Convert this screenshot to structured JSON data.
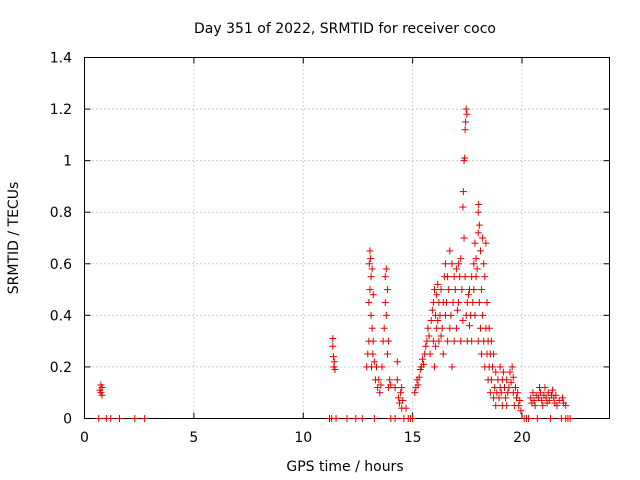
{
  "chart_data": {
    "type": "scatter",
    "title": "Day 351 of 2022, SRMTID for receiver coco",
    "xlabel": "GPS time / hours",
    "ylabel": "SRMTID / TECUs",
    "xlim": [
      0,
      24
    ],
    "ylim": [
      0,
      1.4
    ],
    "xticks": [
      0,
      5,
      10,
      15,
      20
    ],
    "xtick_labels": [
      "0",
      "5",
      "10",
      "15",
      "20"
    ],
    "yticks": [
      0,
      0.2,
      0.4,
      0.6,
      0.8,
      1,
      1.2,
      1.4
    ],
    "ytick_labels": [
      "0",
      "0.2",
      "0.4",
      "0.6",
      "0.8",
      "1",
      "1.2",
      "1.4"
    ],
    "grid": true,
    "marker": "+",
    "color": "#e00000",
    "series": [
      {
        "name": "SRMTID",
        "points": [
          [
            0.65,
            0
          ],
          [
            0.7,
            0.11
          ],
          [
            0.75,
            0.13
          ],
          [
            0.75,
            0.1
          ],
          [
            0.8,
            0.12
          ],
          [
            0.8,
            0.09
          ],
          [
            1.0,
            0
          ],
          [
            1.2,
            0
          ],
          [
            1.6,
            0
          ],
          [
            2.3,
            0
          ],
          [
            2.75,
            0
          ],
          [
            11.2,
            0
          ],
          [
            11.3,
            0
          ],
          [
            11.35,
            0.31
          ],
          [
            11.35,
            0.28
          ],
          [
            11.38,
            0.24
          ],
          [
            11.4,
            0.2
          ],
          [
            11.42,
            0.22
          ],
          [
            11.45,
            0.19
          ],
          [
            11.5,
            0
          ],
          [
            12.0,
            0
          ],
          [
            12.4,
            0
          ],
          [
            12.7,
            0
          ],
          [
            12.9,
            0.2
          ],
          [
            12.95,
            0.25
          ],
          [
            13.0,
            0.3
          ],
          [
            13.0,
            0.45
          ],
          [
            13.02,
            0.6
          ],
          [
            13.05,
            0.65
          ],
          [
            13.05,
            0.5
          ],
          [
            13.08,
            0.62
          ],
          [
            13.1,
            0.55
          ],
          [
            13.1,
            0.4
          ],
          [
            13.12,
            0.2
          ],
          [
            13.15,
            0.35
          ],
          [
            13.15,
            0.58
          ],
          [
            13.18,
            0.25
          ],
          [
            13.2,
            0.3
          ],
          [
            13.2,
            0.48
          ],
          [
            13.25,
            0.22
          ],
          [
            13.25,
            0
          ],
          [
            13.3,
            0.15
          ],
          [
            13.35,
            0.2
          ],
          [
            13.4,
            0.12
          ],
          [
            13.45,
            0.15
          ],
          [
            13.5,
            0.1
          ],
          [
            13.55,
            0.13
          ],
          [
            13.6,
            0.2
          ],
          [
            13.65,
            0.3
          ],
          [
            13.7,
            0.35
          ],
          [
            13.75,
            0.45
          ],
          [
            13.75,
            0.55
          ],
          [
            13.8,
            0.58
          ],
          [
            13.8,
            0.4
          ],
          [
            13.85,
            0.5
          ],
          [
            13.85,
            0.25
          ],
          [
            13.9,
            0.3
          ],
          [
            13.9,
            0.12
          ],
          [
            13.95,
            0.15
          ],
          [
            14.0,
            0.13
          ],
          [
            14.0,
            0
          ],
          [
            14.2,
            0.12
          ],
          [
            14.2,
            0
          ],
          [
            14.3,
            0.22
          ],
          [
            14.3,
            0.15
          ],
          [
            14.35,
            0.08
          ],
          [
            14.4,
            0.06
          ],
          [
            14.45,
            0.1
          ],
          [
            14.5,
            0.12
          ],
          [
            14.5,
            0.04
          ],
          [
            14.55,
            0.07
          ],
          [
            14.6,
            0
          ],
          [
            14.7,
            0.04
          ],
          [
            14.8,
            0
          ],
          [
            14.9,
            0
          ],
          [
            15.0,
            0
          ],
          [
            15.1,
            0.1
          ],
          [
            15.15,
            0.12
          ],
          [
            15.2,
            0.15
          ],
          [
            15.25,
            0.13
          ],
          [
            15.3,
            0.16
          ],
          [
            15.35,
            0.19
          ],
          [
            15.4,
            0.2
          ],
          [
            15.45,
            0.23
          ],
          [
            15.5,
            0.21
          ],
          [
            15.55,
            0.25
          ],
          [
            15.6,
            0.28
          ],
          [
            15.65,
            0.3
          ],
          [
            15.7,
            0.35
          ],
          [
            15.75,
            0.32
          ],
          [
            15.8,
            0.25
          ],
          [
            15.85,
            0.38
          ],
          [
            15.9,
            0.42
          ],
          [
            15.95,
            0.3
          ],
          [
            15.95,
            0.45
          ],
          [
            16.0,
            0.2
          ],
          [
            16.0,
            0.5
          ],
          [
            16.05,
            0.4
          ],
          [
            16.05,
            0.28
          ],
          [
            16.1,
            0.48
          ],
          [
            16.1,
            0.35
          ],
          [
            16.15,
            0.38
          ],
          [
            16.15,
            0.52
          ],
          [
            16.2,
            0.3
          ],
          [
            16.2,
            0.45
          ],
          [
            16.25,
            0.4
          ],
          [
            16.3,
            0.5
          ],
          [
            16.3,
            0.32
          ],
          [
            16.35,
            0.35
          ],
          [
            16.4,
            0.45
          ],
          [
            16.4,
            0.25
          ],
          [
            16.45,
            0.55
          ],
          [
            16.5,
            0.6
          ],
          [
            16.5,
            0.4
          ],
          [
            16.55,
            0.45
          ],
          [
            16.6,
            0.3
          ],
          [
            16.6,
            0.55
          ],
          [
            16.65,
            0.5
          ],
          [
            16.7,
            0.65
          ],
          [
            16.7,
            0.35
          ],
          [
            16.75,
            0.4
          ],
          [
            16.8,
            0.6
          ],
          [
            16.8,
            0.2
          ],
          [
            16.85,
            0.45
          ],
          [
            16.9,
            0.3
          ],
          [
            16.9,
            0.55
          ],
          [
            16.95,
            0.5
          ],
          [
            17.0,
            0.58
          ],
          [
            17.0,
            0.35
          ],
          [
            17.05,
            0.42
          ],
          [
            17.1,
            0.6
          ],
          [
            17.1,
            0.45
          ],
          [
            17.15,
            0.55
          ],
          [
            17.2,
            0.62
          ],
          [
            17.2,
            0.3
          ],
          [
            17.25,
            0.5
          ],
          [
            17.3,
            0.82
          ],
          [
            17.3,
            0.38
          ],
          [
            17.32,
            0.88
          ],
          [
            17.35,
            1.0
          ],
          [
            17.35,
            0.7
          ],
          [
            17.38,
            1.01
          ],
          [
            17.4,
            1.12
          ],
          [
            17.4,
            0.55
          ],
          [
            17.42,
            1.15
          ],
          [
            17.45,
            1.2
          ],
          [
            17.45,
            0.4
          ],
          [
            17.48,
            1.18
          ],
          [
            17.5,
            0.3
          ],
          [
            17.5,
            0.45
          ],
          [
            17.55,
            0.48
          ],
          [
            17.6,
            0.36
          ],
          [
            17.6,
            0.5
          ],
          [
            17.65,
            0.4
          ],
          [
            17.7,
            0.55
          ],
          [
            17.7,
            0.3
          ],
          [
            17.75,
            0.45
          ],
          [
            17.8,
            0.5
          ],
          [
            17.8,
            0.6
          ],
          [
            17.85,
            0.68
          ],
          [
            17.85,
            0.4
          ],
          [
            17.9,
            0.62
          ],
          [
            17.9,
            0.55
          ],
          [
            17.95,
            0.58
          ],
          [
            18.0,
            0.72
          ],
          [
            18.0,
            0.8
          ],
          [
            18.0,
            0.3
          ],
          [
            18.02,
            0.83
          ],
          [
            18.05,
            0.75
          ],
          [
            18.05,
            0.45
          ],
          [
            18.1,
            0.65
          ],
          [
            18.1,
            0.35
          ],
          [
            18.15,
            0.5
          ],
          [
            18.15,
            0.25
          ],
          [
            18.2,
            0.7
          ],
          [
            18.2,
            0.4
          ],
          [
            18.25,
            0.6
          ],
          [
            18.25,
            0.3
          ],
          [
            18.3,
            0.55
          ],
          [
            18.3,
            0.2
          ],
          [
            18.35,
            0.68
          ],
          [
            18.35,
            0.35
          ],
          [
            18.4,
            0.45
          ],
          [
            18.4,
            0.25
          ],
          [
            18.45,
            0.3
          ],
          [
            18.45,
            0.15
          ],
          [
            18.5,
            0.35
          ],
          [
            18.5,
            0.2
          ],
          [
            18.55,
            0.25
          ],
          [
            18.55,
            0.1
          ],
          [
            18.6,
            0.3
          ],
          [
            18.6,
            0.15
          ],
          [
            18.65,
            0.2
          ],
          [
            18.7,
            0.08
          ],
          [
            18.7,
            0.25
          ],
          [
            18.75,
            0.12
          ],
          [
            18.8,
            0.05
          ],
          [
            18.8,
            0.18
          ],
          [
            18.85,
            0.1
          ],
          [
            18.9,
            0.15
          ],
          [
            18.95,
            0.08
          ],
          [
            19.0,
            0.12
          ],
          [
            19.0,
            0.2
          ],
          [
            19.05,
            0.1
          ],
          [
            19.1,
            0.15
          ],
          [
            19.1,
            0.05
          ],
          [
            19.15,
            0.18
          ],
          [
            19.2,
            0.12
          ],
          [
            19.25,
            0.08
          ],
          [
            19.3,
            0.15
          ],
          [
            19.3,
            0.05
          ],
          [
            19.35,
            0.1
          ],
          [
            19.4,
            0.12
          ],
          [
            19.45,
            0.18
          ],
          [
            19.5,
            0.14
          ],
          [
            19.55,
            0.2
          ],
          [
            19.6,
            0.1
          ],
          [
            19.6,
            0.16
          ],
          [
            19.65,
            0.05
          ],
          [
            19.7,
            0.12
          ],
          [
            19.75,
            0.08
          ],
          [
            19.8,
            0.1
          ],
          [
            19.85,
            0.05
          ],
          [
            19.9,
            0.07
          ],
          [
            19.95,
            0.03
          ],
          [
            20.1,
            0
          ],
          [
            20.2,
            0
          ],
          [
            20.3,
            0
          ],
          [
            20.4,
            0.08
          ],
          [
            20.45,
            0.06
          ],
          [
            20.5,
            0.1
          ],
          [
            20.55,
            0.07
          ],
          [
            20.6,
            0.05
          ],
          [
            20.65,
            0.09
          ],
          [
            20.7,
            0
          ],
          [
            20.75,
            0.08
          ],
          [
            20.8,
            0.12
          ],
          [
            20.85,
            0.1
          ],
          [
            20.9,
            0.07
          ],
          [
            20.95,
            0.05
          ],
          [
            21.0,
            0.09
          ],
          [
            21.05,
            0.12
          ],
          [
            21.1,
            0.08
          ],
          [
            21.15,
            0.06
          ],
          [
            21.2,
            0.1
          ],
          [
            21.25,
            0.07
          ],
          [
            21.3,
            0
          ],
          [
            21.35,
            0.09
          ],
          [
            21.4,
            0.11
          ],
          [
            21.45,
            0.08
          ],
          [
            21.5,
            0.06
          ],
          [
            21.55,
            0.09
          ],
          [
            21.6,
            0.05
          ],
          [
            21.7,
            0.07
          ],
          [
            21.8,
            0
          ],
          [
            21.85,
            0.08
          ],
          [
            21.9,
            0.06
          ],
          [
            22.0,
            0.05
          ],
          [
            22.0,
            0
          ],
          [
            22.1,
            0
          ],
          [
            22.2,
            0
          ]
        ]
      }
    ]
  }
}
